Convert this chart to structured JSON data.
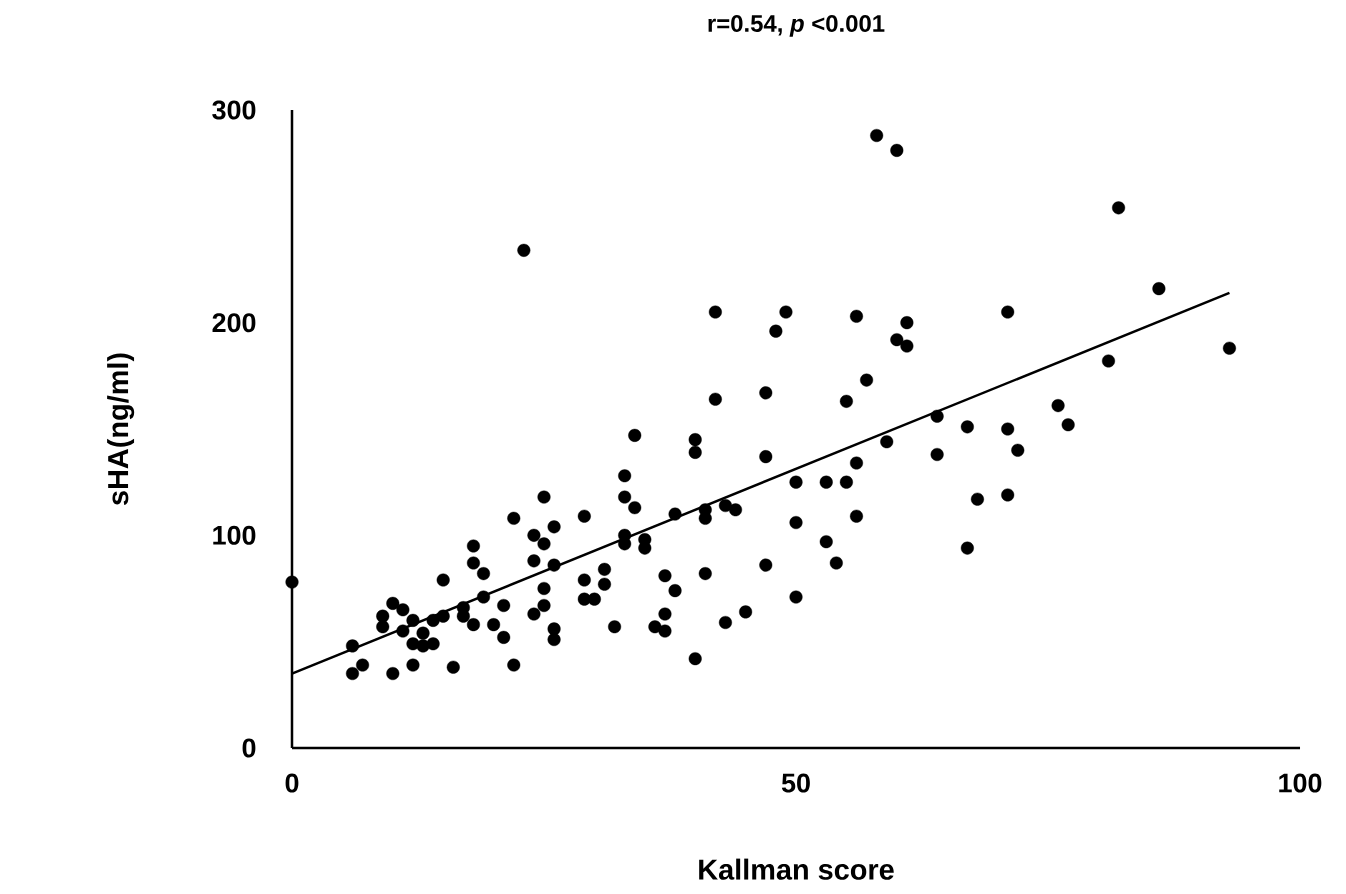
{
  "chart_data": {
    "type": "scatter",
    "title": "r=0.54, *p* <0.001",
    "xlabel": "Kallman score",
    "ylabel": "sHA(ng/ml)",
    "xlim": [
      0,
      100
    ],
    "ylim": [
      0,
      300
    ],
    "xticks": [
      0,
      50,
      100
    ],
    "yticks": [
      0,
      100,
      200,
      300
    ],
    "grid": false,
    "marker": "circle",
    "series": [
      {
        "color": "#000000",
        "x": [
          0,
          6,
          6,
          7,
          10,
          9,
          9,
          10,
          11,
          11,
          12,
          12,
          12,
          13,
          13,
          14,
          14,
          15,
          15,
          16,
          17,
          17,
          18,
          18,
          18,
          19,
          19,
          20,
          21,
          21,
          22,
          22,
          23,
          24,
          24,
          24,
          25,
          25,
          25,
          25,
          26,
          26,
          26,
          26,
          29,
          29,
          29,
          30,
          31,
          31,
          32,
          33,
          33,
          33,
          33,
          34,
          34,
          35,
          35,
          36,
          37,
          37,
          37,
          38,
          38,
          40,
          40,
          40,
          41,
          41,
          41,
          42,
          42,
          43,
          43,
          44,
          45,
          47,
          47,
          47,
          48,
          49,
          50,
          50,
          50,
          53,
          53,
          54,
          55,
          55,
          56,
          56,
          56,
          57,
          58,
          59,
          60,
          60,
          61,
          61,
          64,
          64,
          67,
          67,
          68,
          71,
          71,
          71,
          72,
          76,
          77,
          81,
          82,
          86,
          93
        ],
        "values": [
          78,
          48,
          35,
          39,
          35,
          62,
          57,
          68,
          65,
          55,
          60,
          49,
          39,
          54,
          48,
          49,
          60,
          62,
          79,
          38,
          66,
          62,
          58,
          87,
          95,
          82,
          71,
          58,
          67,
          52,
          108,
          39,
          234,
          63,
          88,
          100,
          96,
          118,
          75,
          67,
          104,
          86,
          56,
          51,
          109,
          79,
          70,
          70,
          84,
          77,
          57,
          128,
          118,
          100,
          96,
          147,
          113,
          98,
          94,
          57,
          81,
          63,
          55,
          110,
          74,
          145,
          139,
          42,
          112,
          108,
          82,
          205,
          164,
          114,
          59,
          112,
          64,
          167,
          137,
          86,
          196,
          205,
          125,
          106,
          71,
          125,
          97,
          87,
          125,
          163,
          203,
          134,
          109,
          173,
          288,
          144,
          281,
          192,
          200,
          189,
          156,
          138,
          151,
          94,
          117,
          205,
          150,
          119,
          140,
          161,
          152,
          182,
          254,
          216,
          188
        ]
      },
      {
        "type": "line",
        "marker": "none",
        "color": "#000000",
        "x": [
          0,
          93
        ],
        "values": [
          35,
          214
        ]
      }
    ]
  }
}
